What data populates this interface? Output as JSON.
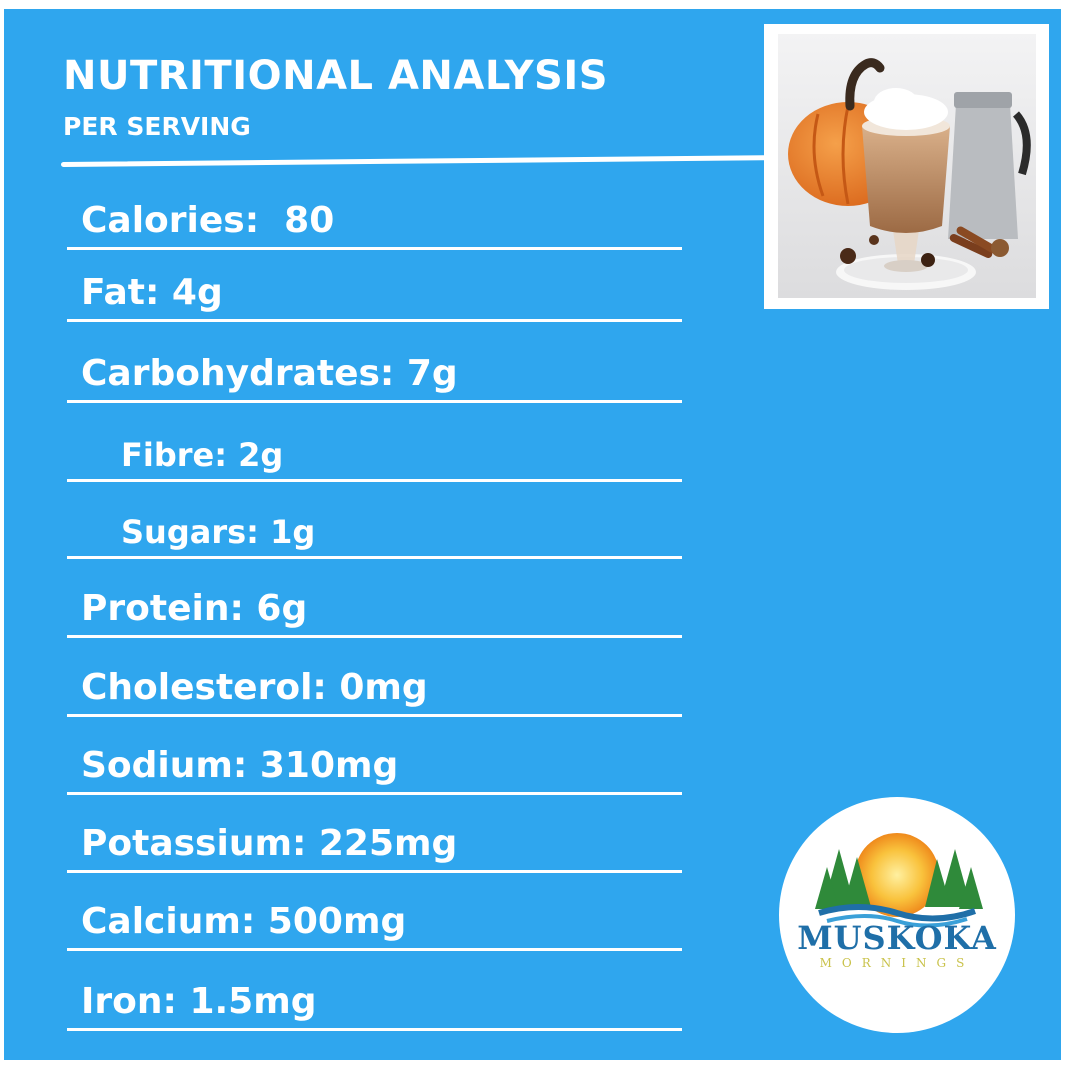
{
  "header": {
    "title": "NUTRITIONAL ANALYSIS",
    "subtitle": "PER SERVING"
  },
  "nutrients": [
    {
      "label": "Calories:  80",
      "indent": false
    },
    {
      "label": "Fat: 4g",
      "indent": false
    },
    {
      "label": "Carbohydrates: 7g",
      "indent": false
    },
    {
      "label": "Fibre: 2g",
      "indent": true
    },
    {
      "label": "Sugars: 1g",
      "indent": true
    },
    {
      "label": "Protein: 6g",
      "indent": false
    },
    {
      "label": "Cholesterol: 0mg",
      "indent": false
    },
    {
      "label": "Sodium: 310mg",
      "indent": false
    },
    {
      "label": "Potassium: 225mg",
      "indent": false
    },
    {
      "label": "Calcium: 500mg",
      "indent": false
    },
    {
      "label": "Iron: 1.5mg",
      "indent": false
    }
  ],
  "logo": {
    "name": "MUSKOKA",
    "tagline": "MORNINGS"
  },
  "colors": {
    "panel": "#2fa6ee",
    "text": "#ffffff",
    "logo_blue": "#1f6fa8",
    "logo_tagline": "#c9c24a",
    "tree_green": "#2f8a3a",
    "sun": "#f5a623"
  },
  "icons": {
    "photo": "pumpkin-latte-photo",
    "logo": "muskoka-mornings-logo"
  }
}
